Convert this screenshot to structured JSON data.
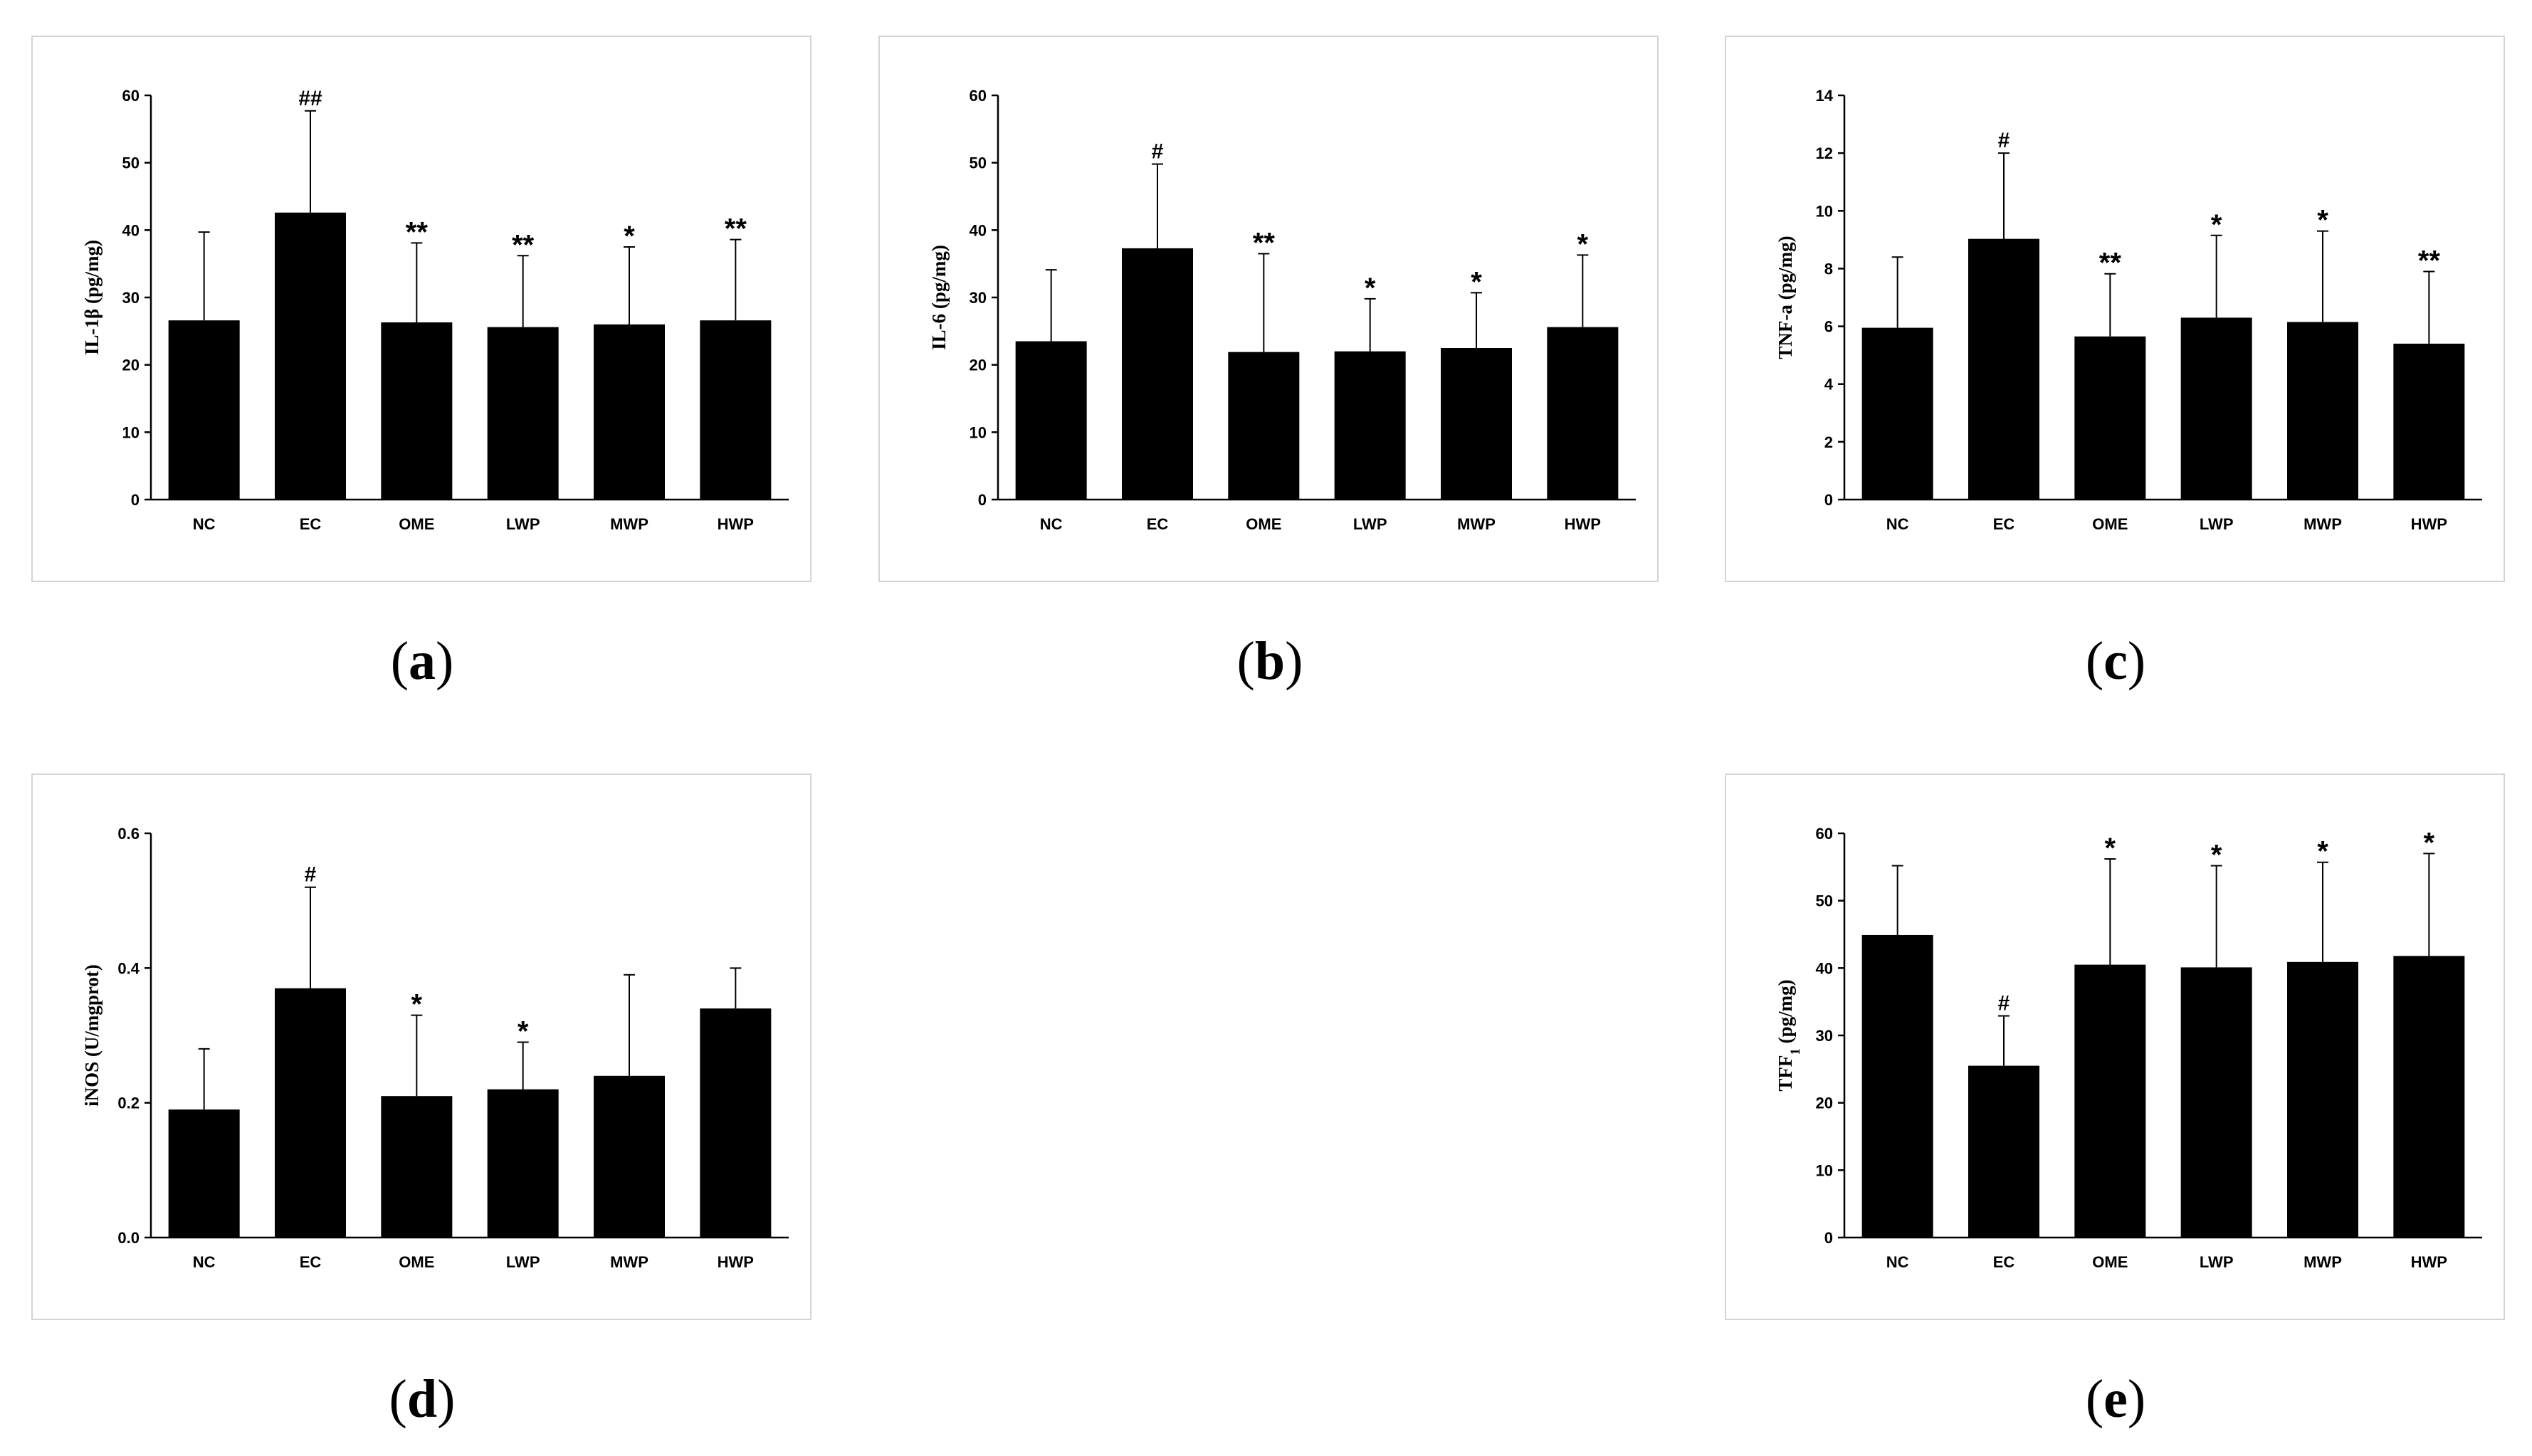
{
  "chart_data": [
    {
      "panel": "a",
      "type": "bar",
      "categories": [
        "NC",
        "EC",
        "OME",
        "LWP",
        "MWP",
        "HWP"
      ],
      "values": [
        26.6,
        42.6,
        26.3,
        25.6,
        26.0,
        26.6
      ],
      "errors": [
        13.1,
        15.1,
        11.8,
        10.6,
        11.5,
        12.0
      ],
      "annotations": [
        "",
        "##",
        "**",
        "**",
        "*",
        "**"
      ],
      "ylabel": "IL-1β (pg/mg)",
      "ylim": [
        0,
        60
      ],
      "yticks": [
        "0",
        "10",
        "20",
        "30",
        "40",
        "50",
        "60"
      ]
    },
    {
      "panel": "b",
      "type": "bar",
      "categories": [
        "NC",
        "EC",
        "OME",
        "LWP",
        "MWP",
        "HWP"
      ],
      "values": [
        23.5,
        37.3,
        21.9,
        22.0,
        22.5,
        25.6
      ],
      "errors": [
        10.6,
        12.5,
        14.6,
        7.8,
        8.2,
        10.7
      ],
      "annotations": [
        "",
        "#",
        "**",
        "*",
        "*",
        "*"
      ],
      "ylabel": "IL-6 (pg/mg)",
      "ylim": [
        0,
        60
      ],
      "yticks": [
        "0",
        "10",
        "20",
        "30",
        "40",
        "50",
        "60"
      ]
    },
    {
      "panel": "c",
      "type": "bar",
      "categories": [
        "NC",
        "EC",
        "OME",
        "LWP",
        "MWP",
        "HWP"
      ],
      "values": [
        5.95,
        9.03,
        5.65,
        6.3,
        6.15,
        5.4
      ],
      "errors": [
        2.45,
        2.97,
        2.17,
        2.85,
        3.15,
        2.5
      ],
      "annotations": [
        "",
        "#",
        "**",
        "*",
        "*",
        "**"
      ],
      "ylabel": "TNF-a (pg/mg)",
      "ylim": [
        0,
        14
      ],
      "yticks": [
        "0",
        "2",
        "4",
        "6",
        "8",
        "10",
        "12",
        "14"
      ]
    },
    {
      "panel": "d",
      "type": "bar",
      "categories": [
        "NC",
        "EC",
        "OME",
        "LWP",
        "MWP",
        "HWP"
      ],
      "values": [
        0.19,
        0.37,
        0.21,
        0.22,
        0.24,
        0.34
      ],
      "errors": [
        0.09,
        0.15,
        0.12,
        0.07,
        0.15,
        0.06
      ],
      "annotations": [
        "",
        "#",
        "*",
        "*",
        "",
        ""
      ],
      "ylabel": "iNOS (U/mgprot)",
      "ylim": [
        0,
        0.6
      ],
      "yticks": [
        "0.0",
        "0.2",
        "0.4",
        "0.6"
      ]
    },
    {
      "panel": "e",
      "type": "bar",
      "categories": [
        "NC",
        "EC",
        "OME",
        "LWP",
        "MWP",
        "HWP"
      ],
      "values": [
        44.9,
        25.5,
        40.5,
        40.1,
        40.9,
        41.8
      ],
      "errors": [
        10.3,
        7.4,
        15.7,
        15.1,
        14.8,
        15.2
      ],
      "annotations": [
        "",
        "#",
        "*",
        "*",
        "*",
        "*"
      ],
      "ylabel": "TFF1 (pg/mg)",
      "ylabel_main": "TFF",
      "ylabel_sub": "1",
      "ylabel_rest": " (pg/mg)",
      "ylim": [
        0,
        60
      ],
      "yticks": [
        "0",
        "10",
        "20",
        "30",
        "40",
        "50",
        "60"
      ]
    }
  ],
  "captions": {
    "a": "a",
    "b": "b",
    "c": "c",
    "d": "d",
    "e": "e"
  }
}
